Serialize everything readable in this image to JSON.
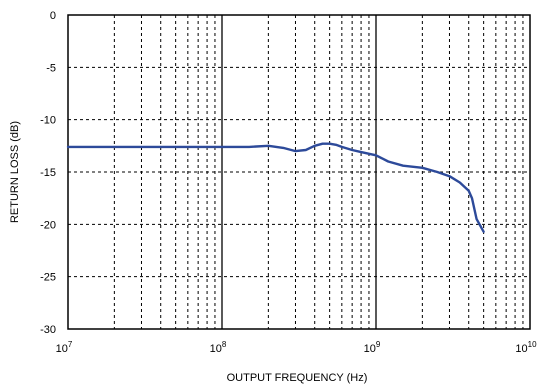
{
  "chart_data": {
    "type": "line",
    "title": "",
    "xlabel": "OUTPUT FREQUENCY (Hz)",
    "ylabel": "RETURN LOSS (dB)",
    "x_scale": "log",
    "xlim": [
      10000000,
      10000000000
    ],
    "ylim": [
      -30,
      0
    ],
    "grid": true,
    "legend": "none",
    "line_color": "#2d4a9a",
    "x_ticks": [
      {
        "base": "10",
        "exp": "7"
      },
      {
        "base": "10",
        "exp": "8"
      },
      {
        "base": "10",
        "exp": "9"
      },
      {
        "base": "10",
        "exp": "10"
      }
    ],
    "y_ticks": [
      "0",
      "-5",
      "-10",
      "-15",
      "-20",
      "-25",
      "-30"
    ],
    "series": [
      {
        "x": [
          10000000,
          20000000,
          50000000,
          100000000,
          150000000,
          200000000,
          250000000,
          300000000,
          350000000,
          400000000,
          450000000,
          500000000,
          550000000,
          600000000,
          700000000,
          800000000,
          1000000000,
          1200000000,
          1500000000,
          2000000000,
          2500000000,
          3000000000,
          3500000000,
          4000000000,
          4200000000,
          4500000000,
          5000000000
        ],
        "y": [
          -12.6,
          -12.6,
          -12.6,
          -12.6,
          -12.6,
          -12.5,
          -12.7,
          -13.0,
          -12.9,
          -12.5,
          -12.3,
          -12.3,
          -12.4,
          -12.6,
          -12.9,
          -13.1,
          -13.4,
          -14.0,
          -14.4,
          -14.6,
          -15.0,
          -15.4,
          -16.0,
          -16.8,
          -17.5,
          -19.5,
          -20.7
        ]
      }
    ]
  }
}
